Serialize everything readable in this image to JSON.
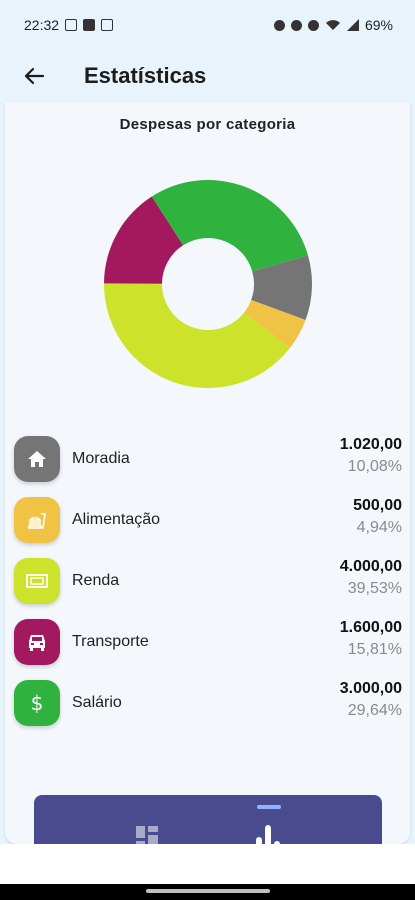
{
  "status_bar": {
    "time": "22:32",
    "battery": "69%"
  },
  "header": {
    "title": "Estatísticas",
    "back_icon": "arrow-left-icon"
  },
  "chart_title": "Despesas por categoria",
  "chart_data": {
    "type": "pie",
    "title": "Despesas por categoria",
    "categories": [
      "Moradia",
      "Alimentação",
      "Renda",
      "Transporte",
      "Salário"
    ],
    "values": [
      1020.0,
      500.0,
      4000.0,
      1600.0,
      3000.0
    ],
    "percentages": [
      10.08,
      4.94,
      39.53,
      15.81,
      29.64
    ],
    "colors": [
      "#757575",
      "#f0c345",
      "#cde22a",
      "#a3185f",
      "#2fb33e"
    ],
    "donut": true,
    "legend": "list-below"
  },
  "categories": [
    {
      "name": "Moradia",
      "amount": "1.020,00",
      "percent": "10,08%",
      "color": "#757575",
      "icon": "house-icon"
    },
    {
      "name": "Alimentação",
      "amount": "500,00",
      "percent": "4,94%",
      "color": "#f0c345",
      "icon": "fastfood-icon"
    },
    {
      "name": "Renda",
      "amount": "4.000,00",
      "percent": "39,53%",
      "color": "#cde22a",
      "icon": "banknote-icon"
    },
    {
      "name": "Transporte",
      "amount": "1.600,00",
      "percent": "15,81%",
      "color": "#a3185f",
      "icon": "car-icon"
    },
    {
      "name": "Salário",
      "amount": "3.000,00",
      "percent": "29,64%",
      "color": "#2fb33e",
      "icon": "dollar-icon"
    }
  ],
  "bottom_nav": {
    "items": [
      {
        "icon": "dashboard-icon",
        "selected": false
      },
      {
        "icon": "bar-chart-icon",
        "selected": true
      }
    ],
    "background": "#4a4a8f",
    "indicator_color": "#8fb4ff"
  }
}
